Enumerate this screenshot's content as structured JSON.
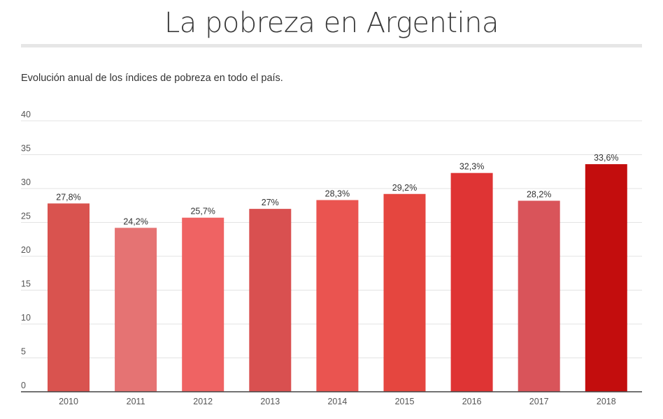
{
  "header": {
    "title": "La pobreza en Argentina",
    "subtitle": "Evolución anual de los índices de pobreza en todo el país."
  },
  "chart_data": {
    "type": "bar",
    "title": "La pobreza en Argentina",
    "subtitle": "Evolución anual de los índices de pobreza en todo el país.",
    "xlabel": "",
    "ylabel": "",
    "ylim": [
      0,
      40
    ],
    "yticks": [
      "0",
      "5",
      "10",
      "15",
      "20",
      "25",
      "30",
      "35",
      "40"
    ],
    "grid": true,
    "categories": [
      "2010",
      "2011",
      "2012",
      "2013",
      "2014",
      "2015",
      "2016",
      "2017",
      "2018"
    ],
    "values": [
      27.8,
      24.2,
      25.7,
      27,
      28.3,
      29.2,
      32.3,
      28.2,
      33.6
    ],
    "data_labels": [
      "27,8%",
      "24,2%",
      "25,7%",
      "27%",
      "28,3%",
      "29,2%",
      "32,3%",
      "28,2%",
      "33,6%"
    ],
    "colors": [
      "#d9534f",
      "#e57373",
      "#ef6363",
      "#d95050",
      "#ea5450",
      "#e5463f",
      "#df3434",
      "#d9545a",
      "#c30d0d"
    ]
  }
}
